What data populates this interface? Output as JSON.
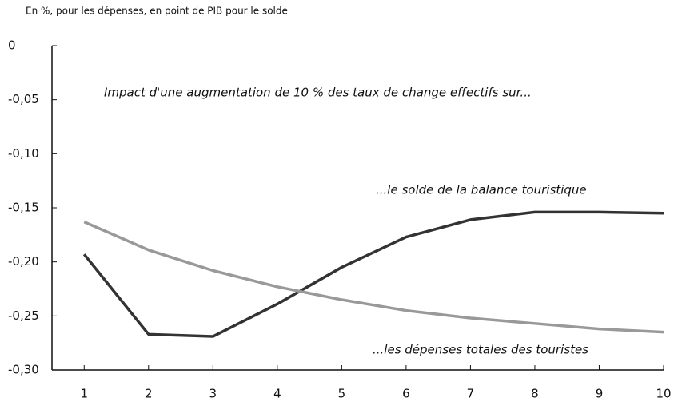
{
  "chart_data": {
    "type": "line",
    "subtitle": "En %, pour les dépenses, en point de PIB pour le solde",
    "annotation": "Impact d'une augmentation de 10 % des taux de change effectifs sur...",
    "x": [
      1,
      2,
      3,
      4,
      5,
      6,
      7,
      8,
      9,
      10
    ],
    "xlim": [
      0.5,
      10
    ],
    "xticks": [
      1,
      2,
      3,
      4,
      5,
      6,
      7,
      8,
      9,
      10
    ],
    "ylim": [
      -0.3,
      0
    ],
    "yticks": [
      0,
      {
        "value": -0.05,
        "label": "-0,05"
      },
      {
        "value": -0.1,
        "label": "-0,10"
      },
      {
        "value": -0.15,
        "label": "-0,15"
      },
      {
        "value": -0.2,
        "label": "-0,20"
      },
      {
        "value": -0.25,
        "label": "-0,25"
      },
      {
        "value": -0.3,
        "label": "-0,30"
      }
    ],
    "series": [
      {
        "name": "...le solde de la balance touristique",
        "color": "#333333",
        "values": [
          -0.193,
          -0.267,
          -0.269,
          -0.239,
          -0.205,
          -0.177,
          -0.161,
          -0.154,
          -0.154,
          -0.155
        ]
      },
      {
        "name": "...les dépenses totales des touristes",
        "color": "#999999",
        "values": [
          -0.163,
          -0.189,
          -0.208,
          -0.223,
          -0.235,
          -0.245,
          -0.252,
          -0.257,
          -0.262,
          -0.265
        ]
      }
    ]
  }
}
